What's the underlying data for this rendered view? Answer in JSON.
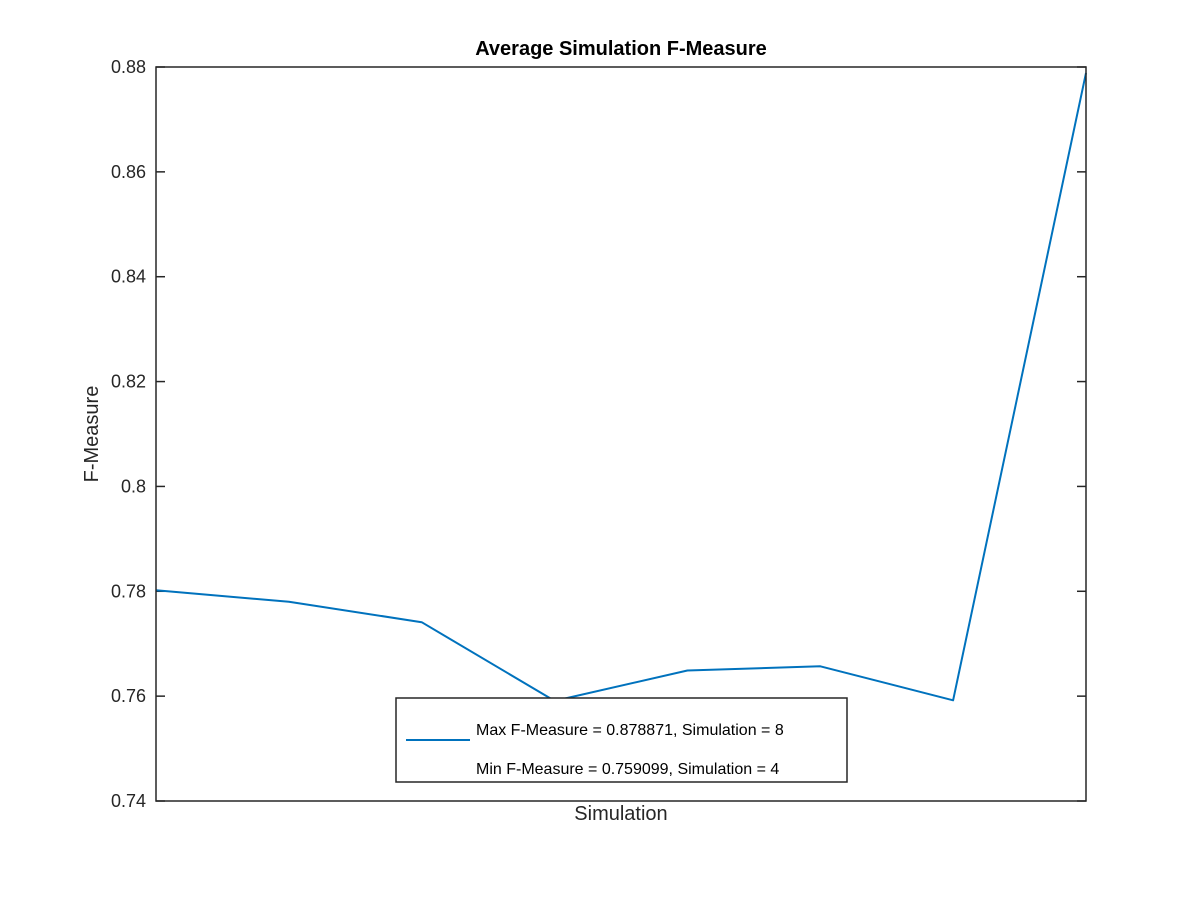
{
  "chart_data": {
    "type": "line",
    "title": "Average Simulation F-Measure",
    "xlabel": "Simulation",
    "ylabel": "F-Measure",
    "x": [
      1,
      2,
      3,
      4,
      5,
      6,
      7,
      8
    ],
    "xlim": [
      1,
      8
    ],
    "ylim": [
      0.74,
      0.88
    ],
    "yticks": [
      "0.74",
      "0.76",
      "0.78",
      "0.8",
      "0.82",
      "0.84",
      "0.86",
      "0.88"
    ],
    "series": [
      {
        "values": [
          0.7802,
          0.778,
          0.7741,
          0.759099,
          0.7649,
          0.7657,
          0.7592,
          0.878871
        ],
        "color": "#0072bd"
      }
    ],
    "legend": {
      "position": "bottom-center",
      "entries": [
        "Max F-Measure = 0.878871, Simulation = 8",
        "Min F-Measure = 0.759099, Simulation = 4"
      ]
    },
    "grid": false
  }
}
